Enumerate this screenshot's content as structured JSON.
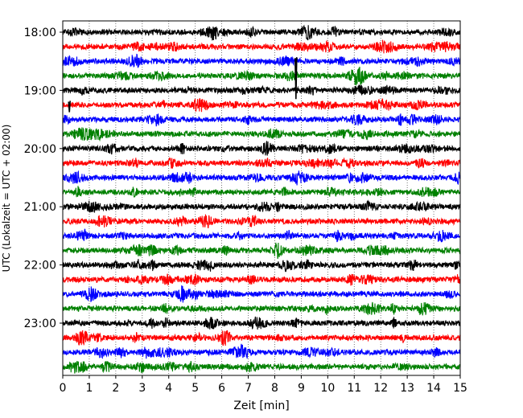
{
  "chart_data": {
    "type": "line",
    "title": "",
    "xlabel": "Zeit  [min]",
    "ylabel": "UTC (Lokalzeit = UTC + 02:00)",
    "xlim": [
      0,
      15
    ],
    "x_ticks": [
      0,
      1,
      2,
      3,
      4,
      5,
      6,
      7,
      8,
      9,
      10,
      11,
      12,
      13,
      14,
      15
    ],
    "x_tick_labels": [
      "0",
      "1",
      "2",
      "3",
      "4",
      "5",
      "6",
      "7",
      "8",
      "9",
      "10",
      "11",
      "12",
      "13",
      "14",
      "15"
    ],
    "y_tick_labels": [
      "18:00",
      "19:00",
      "20:00",
      "21:00",
      "22:00",
      "23:00"
    ],
    "grid": "vertical dotted",
    "trace_minutes": 15,
    "color_cycle": [
      "#000000",
      "#ff0000",
      "#0000ff",
      "#008000"
    ],
    "rows": [
      {
        "start": "18:00"
      },
      {
        "start": "18:15"
      },
      {
        "start": "18:30"
      },
      {
        "start": "18:45"
      },
      {
        "start": "19:00"
      },
      {
        "start": "19:15"
      },
      {
        "start": "19:30"
      },
      {
        "start": "19:45"
      },
      {
        "start": "20:00"
      },
      {
        "start": "20:15"
      },
      {
        "start": "20:30"
      },
      {
        "start": "20:45"
      },
      {
        "start": "21:00"
      },
      {
        "start": "21:15"
      },
      {
        "start": "21:30"
      },
      {
        "start": "21:45"
      },
      {
        "start": "22:00"
      },
      {
        "start": "22:15"
      },
      {
        "start": "22:30"
      },
      {
        "start": "22:45"
      },
      {
        "start": "23:00"
      },
      {
        "start": "23:15"
      },
      {
        "start": "23:30"
      },
      {
        "start": "23:45"
      }
    ],
    "events": [
      {
        "row_start": "18:30",
        "minute": 8.8,
        "amplitude": 2.6
      },
      {
        "row_start": "19:15",
        "minute": 0.25,
        "amplitude": 0.5
      }
    ]
  }
}
